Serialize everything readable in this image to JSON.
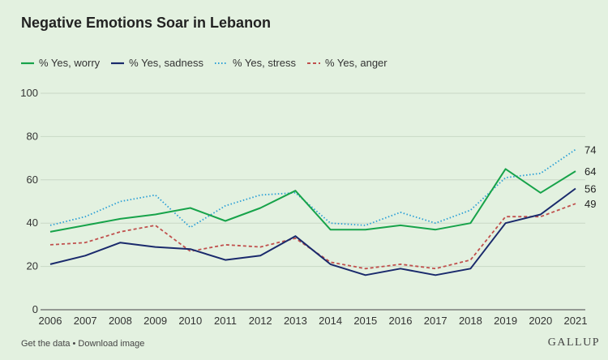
{
  "title": "Negative Emotions Soar in Lebanon",
  "footer": {
    "get_data": "Get the data",
    "separator": "•",
    "download": "Download image",
    "brand": "GALLUP"
  },
  "chart_data": {
    "type": "line",
    "title": "Negative Emotions Soar in Lebanon",
    "xlabel": "",
    "ylabel": "",
    "x": [
      2006,
      2007,
      2008,
      2009,
      2010,
      2011,
      2012,
      2013,
      2014,
      2015,
      2016,
      2017,
      2018,
      2019,
      2020,
      2021
    ],
    "ylim": [
      0,
      100
    ],
    "yticks": [
      0,
      20,
      40,
      60,
      80,
      100
    ],
    "grid": true,
    "legend": "top-left",
    "series": [
      {
        "name": "% Yes, worry",
        "color": "#17a34a",
        "style": "solid",
        "values": [
          36,
          39,
          42,
          44,
          47,
          41,
          47,
          55,
          37,
          37,
          39,
          37,
          40,
          65,
          54,
          64
        ],
        "end_label": "64"
      },
      {
        "name": "% Yes, sadness",
        "color": "#1a2a6c",
        "style": "solid",
        "values": [
          21,
          25,
          31,
          29,
          28,
          23,
          25,
          34,
          21,
          16,
          19,
          16,
          19,
          40,
          44,
          56
        ],
        "end_label": "56"
      },
      {
        "name": "% Yes, stress",
        "color": "#2a9fd6",
        "style": "dotted",
        "values": [
          39,
          43,
          50,
          53,
          38,
          48,
          53,
          54,
          40,
          39,
          45,
          40,
          46,
          61,
          63,
          74
        ],
        "end_label": "74"
      },
      {
        "name": "% Yes, anger",
        "color": "#c0504d",
        "style": "dashed",
        "values": [
          30,
          31,
          36,
          39,
          27,
          30,
          29,
          33,
          22,
          19,
          21,
          19,
          23,
          43,
          43,
          49
        ],
        "end_label": "49"
      }
    ]
  }
}
